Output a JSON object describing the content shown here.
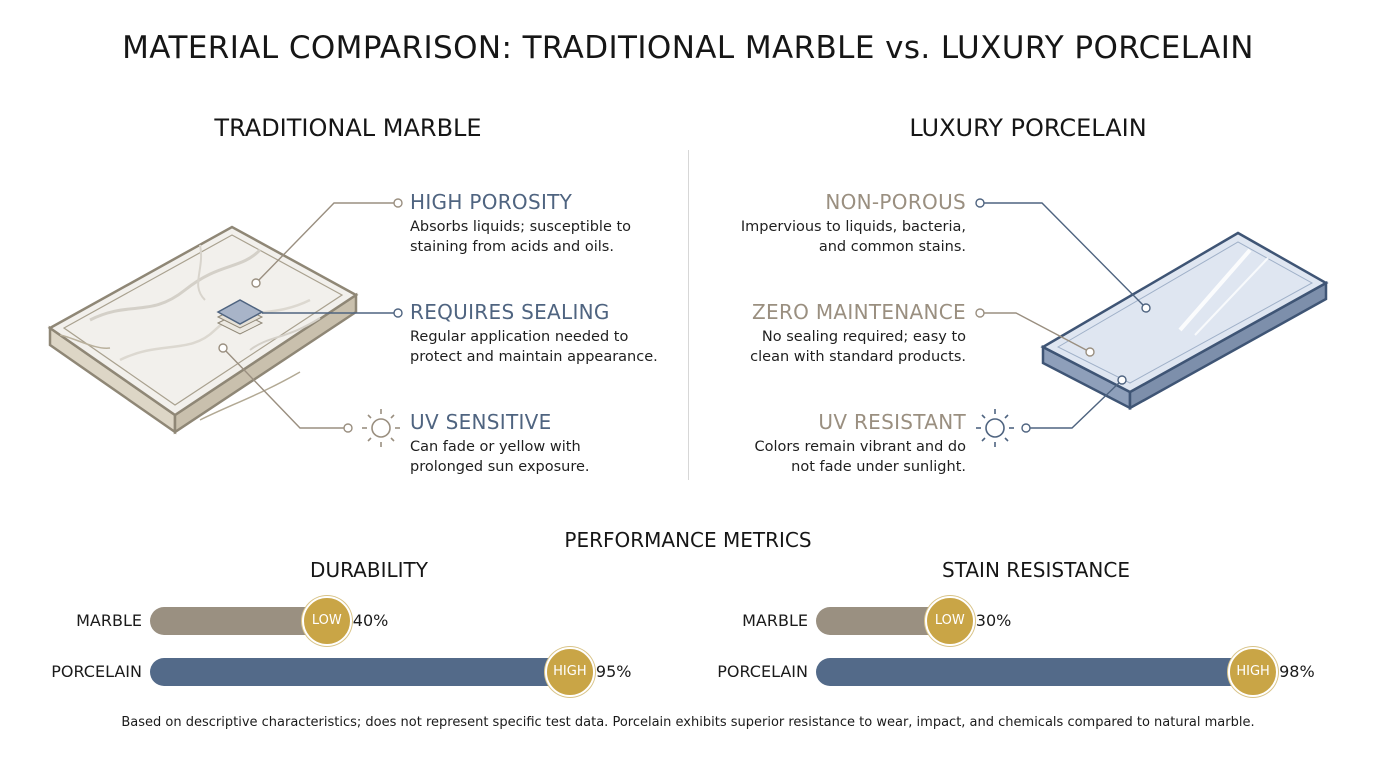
{
  "title": "MATERIAL COMPARISON: TRADITIONAL MARBLE vs. LUXURY PORCELAIN",
  "left_panel": {
    "title": "TRADITIONAL MARBLE",
    "features": [
      {
        "heading": "HIGH POROSITY",
        "lines": [
          "Absorbs liquids; susceptible to",
          "staining from acids and oils."
        ]
      },
      {
        "heading": "REQUIRES SEALING",
        "lines": [
          "Regular application needed to",
          "protect and maintain appearance."
        ]
      },
      {
        "heading": "UV SENSITIVE",
        "lines": [
          "Can fade or yellow with",
          "prolonged sun exposure."
        ],
        "icon": "sun-icon"
      }
    ]
  },
  "right_panel": {
    "title": "LUXURY PORCELAIN",
    "features": [
      {
        "heading": "NON-POROUS",
        "lines": [
          "Impervious to liquids, bacteria,",
          "and common stains."
        ]
      },
      {
        "heading": "ZERO MAINTENANCE",
        "lines": [
          "No sealing required; easy to",
          "clean with standard products."
        ]
      },
      {
        "heading": "UV RESISTANT",
        "lines": [
          "Colors remain vibrant and do",
          "not fade under sunlight."
        ],
        "icon": "sun-icon"
      }
    ]
  },
  "metrics": {
    "title": "PERFORMANCE METRICS",
    "charts": [
      {
        "title": "DURABILITY",
        "rows": [
          {
            "label": "MARBLE",
            "badge": "LOW",
            "value": 40,
            "value_text": "40%",
            "color": "#9a9081"
          },
          {
            "label": "PORCELAIN",
            "badge": "HIGH",
            "value": 95,
            "value_text": "95%",
            "color": "#536a89"
          }
        ]
      },
      {
        "title": "STAIN RESISTANCE",
        "rows": [
          {
            "label": "MARBLE",
            "badge": "LOW",
            "value": 30,
            "value_text": "30%",
            "color": "#9a9081"
          },
          {
            "label": "PORCELAIN",
            "badge": "HIGH",
            "value": 98,
            "value_text": "98%",
            "color": "#536a89"
          }
        ]
      }
    ]
  },
  "colors": {
    "accent_gold": "#c9a546",
    "blue_text": "#4f6480",
    "tan_text": "#9a8f80"
  },
  "footnote": "Based on descriptive characteristics; does not represent specific test data. Porcelain exhibits superior resistance to wear, impact, and chemicals compared to natural marble."
}
